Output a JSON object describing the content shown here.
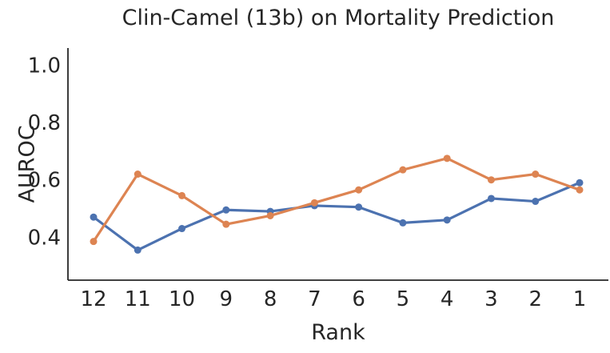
{
  "figure": {
    "background": "#ffffff",
    "text_color": "#262626",
    "spine_color": "#262626"
  },
  "chart_data": {
    "type": "line",
    "title": "Clin-Camel (13b) on Mortality Prediction",
    "xlabel": "Rank",
    "ylabel": "AUROC",
    "categories": [
      "12",
      "11",
      "10",
      "9",
      "8",
      "7",
      "6",
      "5",
      "4",
      "3",
      "2",
      "1"
    ],
    "y_ticks": [
      0.4,
      0.6,
      0.8,
      1.0
    ],
    "ylim": [
      0.25,
      1.06
    ],
    "grid": false,
    "legend": "none",
    "marker": "circle",
    "series": [
      {
        "id": "blue",
        "color": "#4c72b0",
        "values": [
          0.47,
          0.355,
          0.43,
          0.495,
          0.49,
          0.51,
          0.505,
          0.45,
          0.46,
          0.535,
          0.525,
          0.59
        ]
      },
      {
        "id": "orange",
        "color": "#dd8452",
        "values": [
          0.385,
          0.62,
          0.545,
          0.445,
          0.475,
          0.52,
          0.565,
          0.635,
          0.675,
          0.6,
          0.62,
          0.565
        ]
      }
    ]
  }
}
